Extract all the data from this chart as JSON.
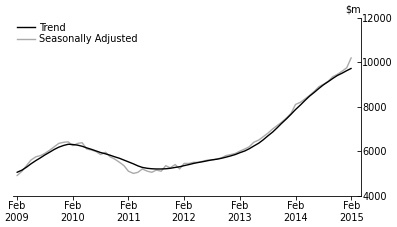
{
  "title": "",
  "ylim": [
    4000,
    12000
  ],
  "yticks": [
    4000,
    6000,
    8000,
    10000,
    12000
  ],
  "xlim_start": 2009.0,
  "xlim_end": 2015.25,
  "xtick_positions": [
    2009.08,
    2010.08,
    2011.08,
    2012.08,
    2013.08,
    2014.08,
    2015.08
  ],
  "xtick_labels": [
    "Feb\n2009",
    "Feb\n2010",
    "Feb\n2011",
    "Feb\n2012",
    "Feb\n2013",
    "Feb\n2014",
    "Feb\n2015"
  ],
  "legend_entries": [
    "Trend",
    "Seasonally Adjusted"
  ],
  "trend_color": "#000000",
  "seasonal_color": "#aaaaaa",
  "background_color": "#ffffff",
  "trend_x": [
    2009.08,
    2009.17,
    2009.25,
    2009.33,
    2009.42,
    2009.5,
    2009.58,
    2009.67,
    2009.75,
    2009.83,
    2009.92,
    2010.0,
    2010.08,
    2010.17,
    2010.25,
    2010.33,
    2010.42,
    2010.5,
    2010.58,
    2010.67,
    2010.75,
    2010.83,
    2010.92,
    2011.0,
    2011.08,
    2011.17,
    2011.25,
    2011.33,
    2011.42,
    2011.5,
    2011.58,
    2011.67,
    2011.75,
    2011.83,
    2011.92,
    2012.0,
    2012.08,
    2012.17,
    2012.25,
    2012.33,
    2012.42,
    2012.5,
    2012.58,
    2012.67,
    2012.75,
    2012.83,
    2012.92,
    2013.0,
    2013.08,
    2013.17,
    2013.25,
    2013.33,
    2013.42,
    2013.5,
    2013.58,
    2013.67,
    2013.75,
    2013.83,
    2013.92,
    2014.0,
    2014.08,
    2014.17,
    2014.25,
    2014.33,
    2014.42,
    2014.5,
    2014.58,
    2014.67,
    2014.75,
    2014.83,
    2014.92,
    2015.0,
    2015.08
  ],
  "trend_y": [
    5050,
    5150,
    5280,
    5430,
    5580,
    5700,
    5830,
    5960,
    6080,
    6180,
    6260,
    6310,
    6300,
    6270,
    6220,
    6150,
    6080,
    6010,
    5940,
    5880,
    5820,
    5750,
    5680,
    5600,
    5520,
    5430,
    5340,
    5270,
    5230,
    5210,
    5200,
    5200,
    5210,
    5230,
    5270,
    5300,
    5350,
    5400,
    5450,
    5490,
    5530,
    5570,
    5610,
    5640,
    5680,
    5730,
    5790,
    5850,
    5930,
    6010,
    6110,
    6230,
    6360,
    6510,
    6680,
    6860,
    7050,
    7250,
    7460,
    7660,
    7870,
    8080,
    8280,
    8470,
    8650,
    8820,
    8980,
    9130,
    9270,
    9400,
    9510,
    9620,
    9720
  ],
  "seasonal_x": [
    2009.08,
    2009.17,
    2009.25,
    2009.33,
    2009.42,
    2009.5,
    2009.58,
    2009.67,
    2009.75,
    2009.83,
    2009.92,
    2010.0,
    2010.08,
    2010.17,
    2010.25,
    2010.33,
    2010.42,
    2010.5,
    2010.58,
    2010.67,
    2010.75,
    2010.83,
    2010.92,
    2011.0,
    2011.08,
    2011.17,
    2011.25,
    2011.33,
    2011.42,
    2011.5,
    2011.58,
    2011.67,
    2011.75,
    2011.83,
    2011.92,
    2012.0,
    2012.08,
    2012.17,
    2012.25,
    2012.33,
    2012.42,
    2012.5,
    2012.58,
    2012.67,
    2012.75,
    2012.83,
    2012.92,
    2013.0,
    2013.08,
    2013.17,
    2013.25,
    2013.33,
    2013.42,
    2013.5,
    2013.58,
    2013.67,
    2013.75,
    2013.83,
    2013.92,
    2014.0,
    2014.08,
    2014.17,
    2014.25,
    2014.33,
    2014.42,
    2014.5,
    2014.58,
    2014.67,
    2014.75,
    2014.83,
    2014.92,
    2015.0,
    2015.08
  ],
  "seasonal_y": [
    4900,
    5100,
    5350,
    5600,
    5750,
    5800,
    5900,
    6050,
    6200,
    6350,
    6400,
    6420,
    6250,
    6350,
    6380,
    6100,
    6050,
    5980,
    5850,
    5950,
    5750,
    5650,
    5500,
    5350,
    5100,
    5000,
    5050,
    5200,
    5100,
    5050,
    5150,
    5100,
    5350,
    5250,
    5400,
    5200,
    5450,
    5450,
    5500,
    5500,
    5550,
    5600,
    5600,
    5650,
    5700,
    5800,
    5850,
    5900,
    6000,
    6100,
    6200,
    6400,
    6500,
    6650,
    6800,
    7000,
    7150,
    7300,
    7500,
    7700,
    8100,
    8200,
    8350,
    8500,
    8700,
    8900,
    9000,
    9150,
    9350,
    9450,
    9600,
    9750,
    10200
  ],
  "linewidth_trend": 1.0,
  "linewidth_seasonal": 1.0,
  "fontsize_ticks": 7,
  "fontsize_legend": 7,
  "fontsize_ylabel": 7
}
